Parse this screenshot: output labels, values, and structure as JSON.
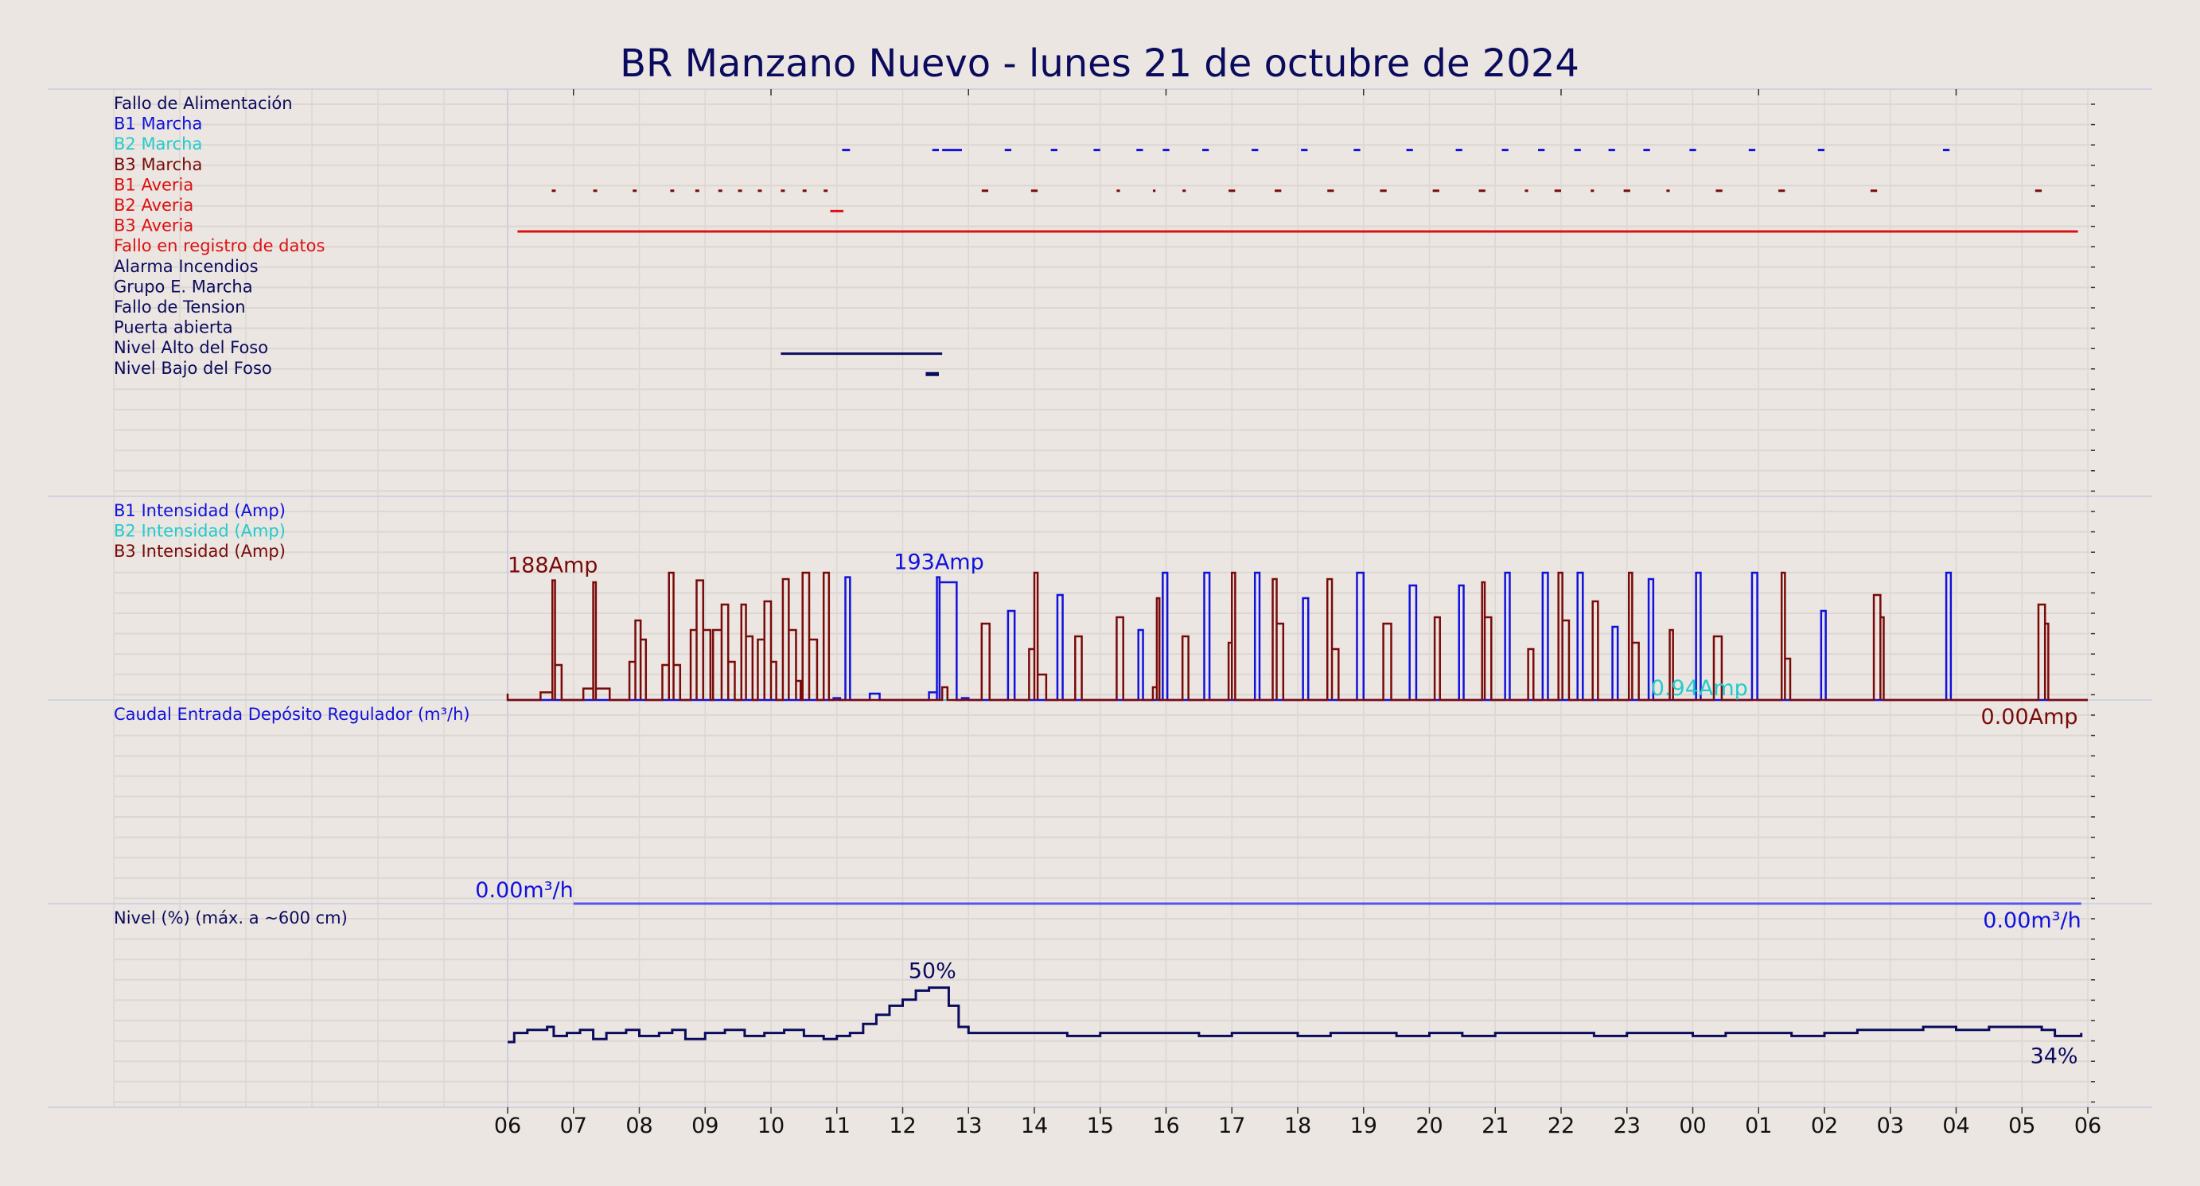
{
  "page_title": "BR Manzano Nuevo   -   lunes 21 de octubre de 2024",
  "x_ticks": [
    "06",
    "07",
    "08",
    "09",
    "10",
    "11",
    "12",
    "13",
    "14",
    "15",
    "16",
    "17",
    "18",
    "19",
    "20",
    "21",
    "22",
    "23",
    "00",
    "01",
    "02",
    "03",
    "04",
    "05",
    "06"
  ],
  "colors": {
    "background": "#ebe6e1",
    "grid": "#dcd7d2",
    "separator": "#c8cce6",
    "navy": "#0b0b5e",
    "blue": "#1111dd",
    "cyan": "#22cccc",
    "maroon": "#7a0a0a",
    "red": "#dd1111",
    "flow": "#5555ee",
    "level": "#0b0b5e"
  },
  "chart_data": [
    {
      "type": "event-timeline",
      "x_unit": "hour of day (06:00 to 06:00 next day)",
      "x_range": [
        6,
        30
      ],
      "rows": [
        {
          "label": "Fallo de Alimentación",
          "color": "navy",
          "segments": []
        },
        {
          "label": "B1 Marcha",
          "color": "blue",
          "segments": [
            [
              11.08,
              11.2
            ],
            [
              12.45,
              12.55
            ],
            [
              12.6,
              12.9
            ],
            [
              13.55,
              13.65
            ],
            [
              14.25,
              14.35
            ],
            [
              14.9,
              15.0
            ],
            [
              15.55,
              15.65
            ],
            [
              15.95,
              16.05
            ],
            [
              16.55,
              16.65
            ],
            [
              17.3,
              17.4
            ],
            [
              18.05,
              18.15
            ],
            [
              18.85,
              18.95
            ],
            [
              19.65,
              19.75
            ],
            [
              20.4,
              20.5
            ],
            [
              21.1,
              21.2
            ],
            [
              21.65,
              21.75
            ],
            [
              22.2,
              22.3
            ],
            [
              22.72,
              22.82
            ],
            [
              23.25,
              23.35
            ],
            [
              23.95,
              24.05
            ],
            [
              24.85,
              24.95
            ],
            [
              25.9,
              26.0
            ],
            [
              27.8,
              27.9
            ]
          ]
        },
        {
          "label": "B2 Marcha",
          "color": "cyan",
          "segments": []
        },
        {
          "label": "B3 Marcha",
          "color": "maroon",
          "segments": [
            [
              6.67,
              6.73
            ],
            [
              7.3,
              7.36
            ],
            [
              7.9,
              7.96
            ],
            [
              8.47,
              8.53
            ],
            [
              8.85,
              8.91
            ],
            [
              9.2,
              9.26
            ],
            [
              9.5,
              9.56
            ],
            [
              9.8,
              9.86
            ],
            [
              10.15,
              10.21
            ],
            [
              10.48,
              10.54
            ],
            [
              10.8,
              10.86
            ],
            [
              13.2,
              13.3
            ],
            [
              13.95,
              14.05
            ],
            [
              15.25,
              15.3
            ],
            [
              15.8,
              15.84
            ],
            [
              16.25,
              16.3
            ],
            [
              16.95,
              17.05
            ],
            [
              17.65,
              17.75
            ],
            [
              18.45,
              18.55
            ],
            [
              19.25,
              19.35
            ],
            [
              20.05,
              20.15
            ],
            [
              20.75,
              20.85
            ],
            [
              21.45,
              21.5
            ],
            [
              21.9,
              22.0
            ],
            [
              22.45,
              22.5
            ],
            [
              22.95,
              23.05
            ],
            [
              23.6,
              23.65
            ],
            [
              24.35,
              24.45
            ],
            [
              25.3,
              25.4
            ],
            [
              26.7,
              26.8
            ],
            [
              29.2,
              29.3
            ]
          ]
        },
        {
          "label": "B1 Averia",
          "color": "red",
          "segments": [
            [
              10.9,
              11.1
            ]
          ]
        },
        {
          "label": "B2 Averia",
          "color": "red",
          "segments": [
            [
              6.15,
              29.85
            ]
          ]
        },
        {
          "label": "B3 Averia",
          "color": "red",
          "segments": []
        },
        {
          "label": "Fallo en registro de datos",
          "color": "red",
          "segments": []
        },
        {
          "label": "Alarma Incendios",
          "color": "navy",
          "segments": []
        },
        {
          "label": "Grupo E. Marcha",
          "color": "navy",
          "segments": []
        },
        {
          "label": "Fallo de Tension",
          "color": "navy",
          "segments": []
        },
        {
          "label": "Puerta abierta",
          "color": "navy",
          "segments": [
            [
              10.15,
              12.6
            ]
          ]
        },
        {
          "label": "Nivel Alto del Foso",
          "color": "navy",
          "segments": [
            [
              12.35,
              12.55
            ]
          ]
        },
        {
          "label": "Nivel Bajo del Foso",
          "color": "navy",
          "segments": []
        }
      ]
    },
    {
      "type": "line",
      "legend": [
        "B1 Intensidad (Amp)",
        "B2 Intensidad (Amp)",
        "B3 Intensidad (Amp)"
      ],
      "y_unit": "Amp",
      "ylim": [
        0,
        210
      ],
      "series": [
        {
          "name": "B1 Intensidad (Amp)",
          "color": "blue",
          "pulses": [
            [
              10.95,
              11.05,
              3
            ],
            [
              11.13,
              11.2,
              193
            ],
            [
              11.5,
              11.65,
              10
            ],
            [
              12.4,
              12.52,
              12
            ],
            [
              12.52,
              12.56,
              193
            ],
            [
              12.56,
              12.82,
              185
            ],
            [
              12.9,
              13.0,
              3
            ],
            [
              13.6,
              13.7,
              140
            ],
            [
              14.35,
              14.43,
              165
            ],
            [
              15.58,
              15.65,
              110
            ],
            [
              15.95,
              16.02,
              200
            ],
            [
              16.58,
              16.66,
              200
            ],
            [
              17.35,
              17.42,
              200
            ],
            [
              18.08,
              18.16,
              160
            ],
            [
              18.9,
              19.0,
              200
            ],
            [
              19.7,
              19.8,
              180
            ],
            [
              20.45,
              20.52,
              180
            ],
            [
              21.15,
              21.22,
              200
            ],
            [
              21.72,
              21.8,
              200
            ],
            [
              22.25,
              22.33,
              200
            ],
            [
              22.78,
              22.86,
              115
            ],
            [
              23.33,
              23.4,
              190
            ],
            [
              24.05,
              24.12,
              200
            ],
            [
              24.9,
              24.98,
              200
            ],
            [
              25.95,
              26.02,
              140
            ],
            [
              27.85,
              27.92,
              200
            ]
          ]
        },
        {
          "name": "B2 Intensidad (Amp)",
          "color": "cyan",
          "pulses": []
        },
        {
          "name": "B3 Intensidad (Amp)",
          "color": "maroon",
          "pulses": [
            [
              6.5,
              6.68,
              12
            ],
            [
              6.68,
              6.72,
              188
            ],
            [
              6.72,
              6.82,
              55
            ],
            [
              7.15,
              7.3,
              18
            ],
            [
              7.3,
              7.34,
              185
            ],
            [
              7.34,
              7.55,
              18
            ],
            [
              7.85,
              7.94,
              60
            ],
            [
              7.94,
              8.02,
              125
            ],
            [
              8.02,
              8.1,
              95
            ],
            [
              8.35,
              8.45,
              55
            ],
            [
              8.45,
              8.52,
              200
            ],
            [
              8.52,
              8.62,
              55
            ],
            [
              8.78,
              8.87,
              110
            ],
            [
              8.87,
              8.97,
              188
            ],
            [
              8.97,
              9.08,
              110
            ],
            [
              9.12,
              9.25,
              110
            ],
            [
              9.25,
              9.35,
              150
            ],
            [
              9.35,
              9.45,
              60
            ],
            [
              9.55,
              9.62,
              150
            ],
            [
              9.62,
              9.72,
              100
            ],
            [
              9.8,
              9.9,
              95
            ],
            [
              9.9,
              10.0,
              155
            ],
            [
              10.0,
              10.08,
              60
            ],
            [
              10.18,
              10.27,
              190
            ],
            [
              10.27,
              10.38,
              110
            ],
            [
              10.38,
              10.45,
              30
            ],
            [
              10.48,
              10.58,
              200
            ],
            [
              10.58,
              10.7,
              95
            ],
            [
              10.8,
              10.88,
              200
            ],
            [
              12.6,
              12.68,
              20
            ],
            [
              13.2,
              13.32,
              120
            ],
            [
              13.92,
              14.0,
              80
            ],
            [
              14.0,
              14.05,
              200
            ],
            [
              14.05,
              14.18,
              40
            ],
            [
              14.62,
              14.72,
              100
            ],
            [
              15.25,
              15.35,
              130
            ],
            [
              15.8,
              15.86,
              20
            ],
            [
              15.86,
              15.9,
              160
            ],
            [
              16.25,
              16.34,
              100
            ],
            [
              16.95,
              17.0,
              90
            ],
            [
              17.0,
              17.05,
              200
            ],
            [
              17.62,
              17.68,
              190
            ],
            [
              17.68,
              17.78,
              120
            ],
            [
              18.45,
              18.52,
              190
            ],
            [
              18.52,
              18.62,
              80
            ],
            [
              19.3,
              19.42,
              120
            ],
            [
              20.08,
              20.16,
              130
            ],
            [
              20.8,
              20.84,
              185
            ],
            [
              20.84,
              20.94,
              130
            ],
            [
              21.5,
              21.58,
              80
            ],
            [
              21.96,
              22.02,
              200
            ],
            [
              22.02,
              22.12,
              125
            ],
            [
              22.48,
              22.56,
              155
            ],
            [
              23.03,
              23.08,
              200
            ],
            [
              23.08,
              23.18,
              90
            ],
            [
              23.65,
              23.7,
              110
            ],
            [
              24.32,
              24.44,
              100
            ],
            [
              25.35,
              25.4,
              200
            ],
            [
              25.4,
              25.48,
              65
            ],
            [
              26.75,
              26.85,
              165
            ],
            [
              26.85,
              26.9,
              130
            ],
            [
              29.25,
              29.35,
              150
            ],
            [
              29.35,
              29.4,
              120
            ]
          ]
        }
      ],
      "annotations": [
        {
          "text": "188Amp",
          "color": "maroon",
          "x": 6.7,
          "y": 188
        },
        {
          "text": "193Amp",
          "color": "blue",
          "x": 12.55,
          "y": 193
        },
        {
          "text": "0.94Amp",
          "color": "cyan",
          "x": 24.1,
          "y": 0.94
        },
        {
          "text": "0.00Amp",
          "color": "maroon",
          "x": 29.85,
          "y": 0
        }
      ]
    },
    {
      "type": "line",
      "title": "Caudal Entrada Depósito Regulador (m³/h)",
      "y_unit": "m³/h",
      "series": [
        {
          "name": "Caudal Entrada Depósito Regulador (m³/h)",
          "color": "flow",
          "x": [
            7.0,
            29.9
          ],
          "y": [
            0,
            0
          ]
        }
      ],
      "annotations": [
        {
          "text": "0.00m³/h",
          "color": "blue",
          "x": 6.0,
          "y": 0
        },
        {
          "text": "0.00m³/h",
          "color": "blue",
          "x": 29.9,
          "y": 0
        }
      ]
    },
    {
      "type": "line",
      "title": "Nivel (%) (máx. a ~600 cm)",
      "y_unit": "%",
      "ylim": [
        0,
        100
      ],
      "series": [
        {
          "name": "Nivel (%) (máx. a ~600 cm)",
          "color": "level",
          "x": [
            6.0,
            6.1,
            6.3,
            6.6,
            6.7,
            6.9,
            7.1,
            7.3,
            7.5,
            7.8,
            8.0,
            8.3,
            8.5,
            8.7,
            9.0,
            9.3,
            9.6,
            9.9,
            10.2,
            10.5,
            10.8,
            11.0,
            11.2,
            11.4,
            11.6,
            11.8,
            12.0,
            12.2,
            12.4,
            12.55,
            12.7,
            12.85,
            13.0,
            13.5,
            14.0,
            14.5,
            15.0,
            15.5,
            16.0,
            16.5,
            17.0,
            17.5,
            18.0,
            18.5,
            19.0,
            19.5,
            20.0,
            20.5,
            21.0,
            21.5,
            22.0,
            22.5,
            23.0,
            23.5,
            24.0,
            24.5,
            25.0,
            25.5,
            26.0,
            26.5,
            27.0,
            27.5,
            28.0,
            28.5,
            29.0,
            29.3,
            29.5,
            29.9
          ],
          "y": [
            32,
            35,
            36,
            37,
            34,
            35,
            36,
            33,
            35,
            36,
            34,
            35,
            36,
            33,
            35,
            36,
            34,
            35,
            36,
            34,
            33,
            34,
            35,
            38,
            41,
            44,
            46,
            49,
            50,
            50,
            44,
            37,
            35,
            35,
            35,
            34,
            35,
            35,
            35,
            34,
            35,
            35,
            34,
            35,
            35,
            34,
            35,
            34,
            35,
            35,
            35,
            34,
            35,
            35,
            34,
            35,
            35,
            34,
            35,
            36,
            36,
            37,
            36,
            37,
            37,
            36,
            34,
            35
          ]
        }
      ],
      "annotations": [
        {
          "text": "50%",
          "color": "navy",
          "x": 12.45,
          "y": 50
        },
        {
          "text": "34%",
          "color": "navy",
          "x": 29.85,
          "y": 34
        }
      ]
    }
  ]
}
